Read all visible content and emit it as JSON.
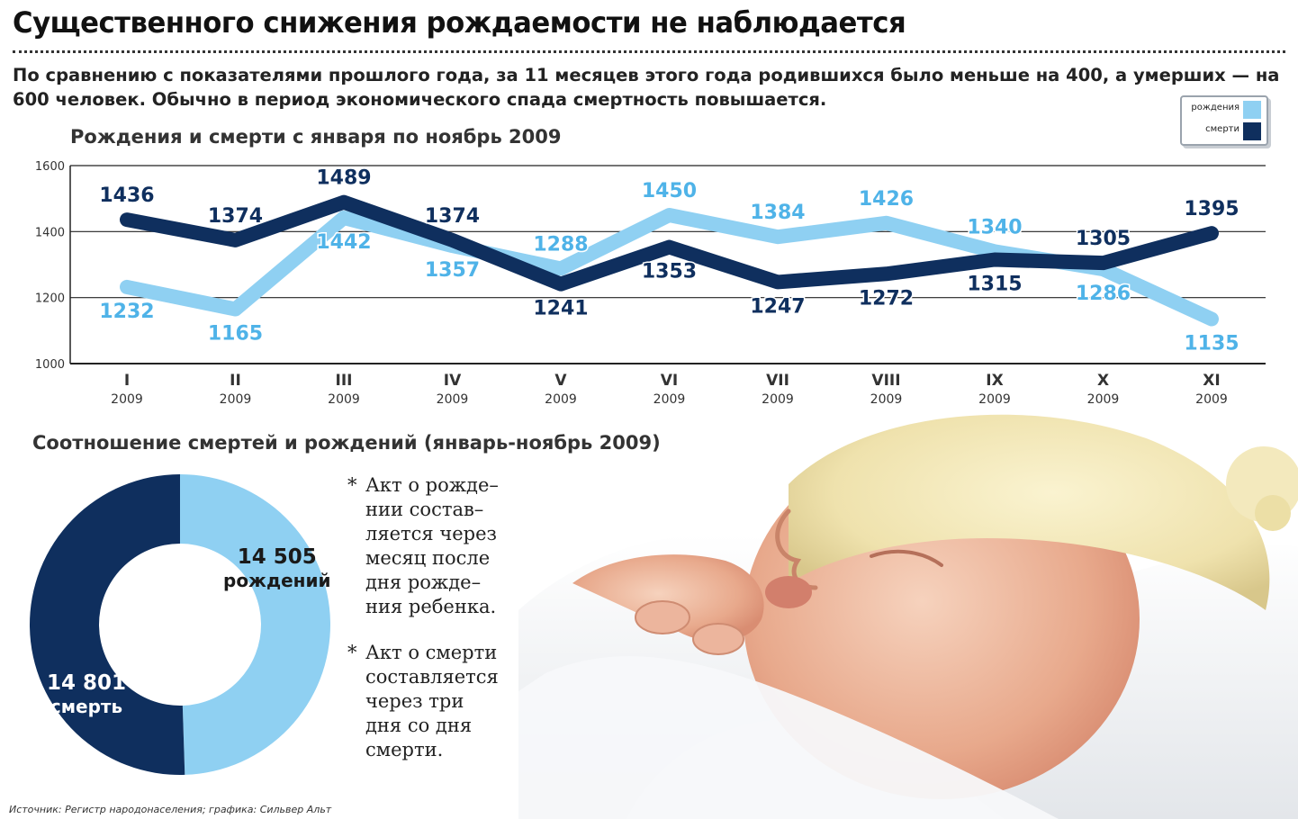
{
  "headline": "Существенного снижения рождаемости не наблюдается",
  "lead": "По сравнению с показателями прошлого года, за 11 месяцев этого года родившихся было меньше на 400, а умерших — на 600 человек. Обычно в период экономического спада смертность повышается.",
  "legend": {
    "births": "рождения",
    "deaths": "смерти"
  },
  "colors": {
    "births": "#8fd0f2",
    "deaths": "#0f2f5e",
    "axis": "#333333"
  },
  "chart_data": [
    {
      "type": "line",
      "title": "Рождения и смерти с января по ноябрь 2009",
      "categories": [
        "I",
        "II",
        "III",
        "IV",
        "V",
        "VI",
        "VII",
        "VIII",
        "IX",
        "X",
        "XI"
      ],
      "category_year": "2009",
      "series": [
        {
          "name": "рождения",
          "color": "#8fd0f2",
          "values": [
            1232,
            1165,
            1442,
            1357,
            1288,
            1450,
            1384,
            1426,
            1340,
            1286,
            1135
          ]
        },
        {
          "name": "смерти",
          "color": "#0f2f5e",
          "values": [
            1436,
            1374,
            1489,
            1374,
            1241,
            1353,
            1247,
            1272,
            1315,
            1305,
            1395
          ]
        }
      ],
      "yticks": [
        "1000",
        "1200",
        "1400",
        "1600"
      ],
      "ylim": [
        1000,
        1600
      ],
      "grid": true,
      "legend_position": "top-right"
    },
    {
      "type": "pie",
      "donut": true,
      "title": "Соотношение смертей и рождений (январь-ноябрь 2009)",
      "slices": [
        {
          "value": 14505,
          "number_label": "14 505",
          "text_label": "рождений",
          "color": "#8fd0f2"
        },
        {
          "value": 14801,
          "number_label": "14 801",
          "text_label": "смерть",
          "color": "#0f2f5e"
        }
      ]
    }
  ],
  "notes": [
    {
      "star": "*",
      "text": "Акт о рожде–\nнии состав–\nляется через\nмесяц после\nдня рожде–\nния ребенка."
    },
    {
      "star": "*",
      "text": "Акт о смерти\nсоставляется\nчерез три\nдня со дня\nсмерти."
    }
  ],
  "photo": {
    "icon": "sleeping-baby-photo"
  },
  "source": "Источник: Регистр народонаселения; графика: Сильвер Альт"
}
